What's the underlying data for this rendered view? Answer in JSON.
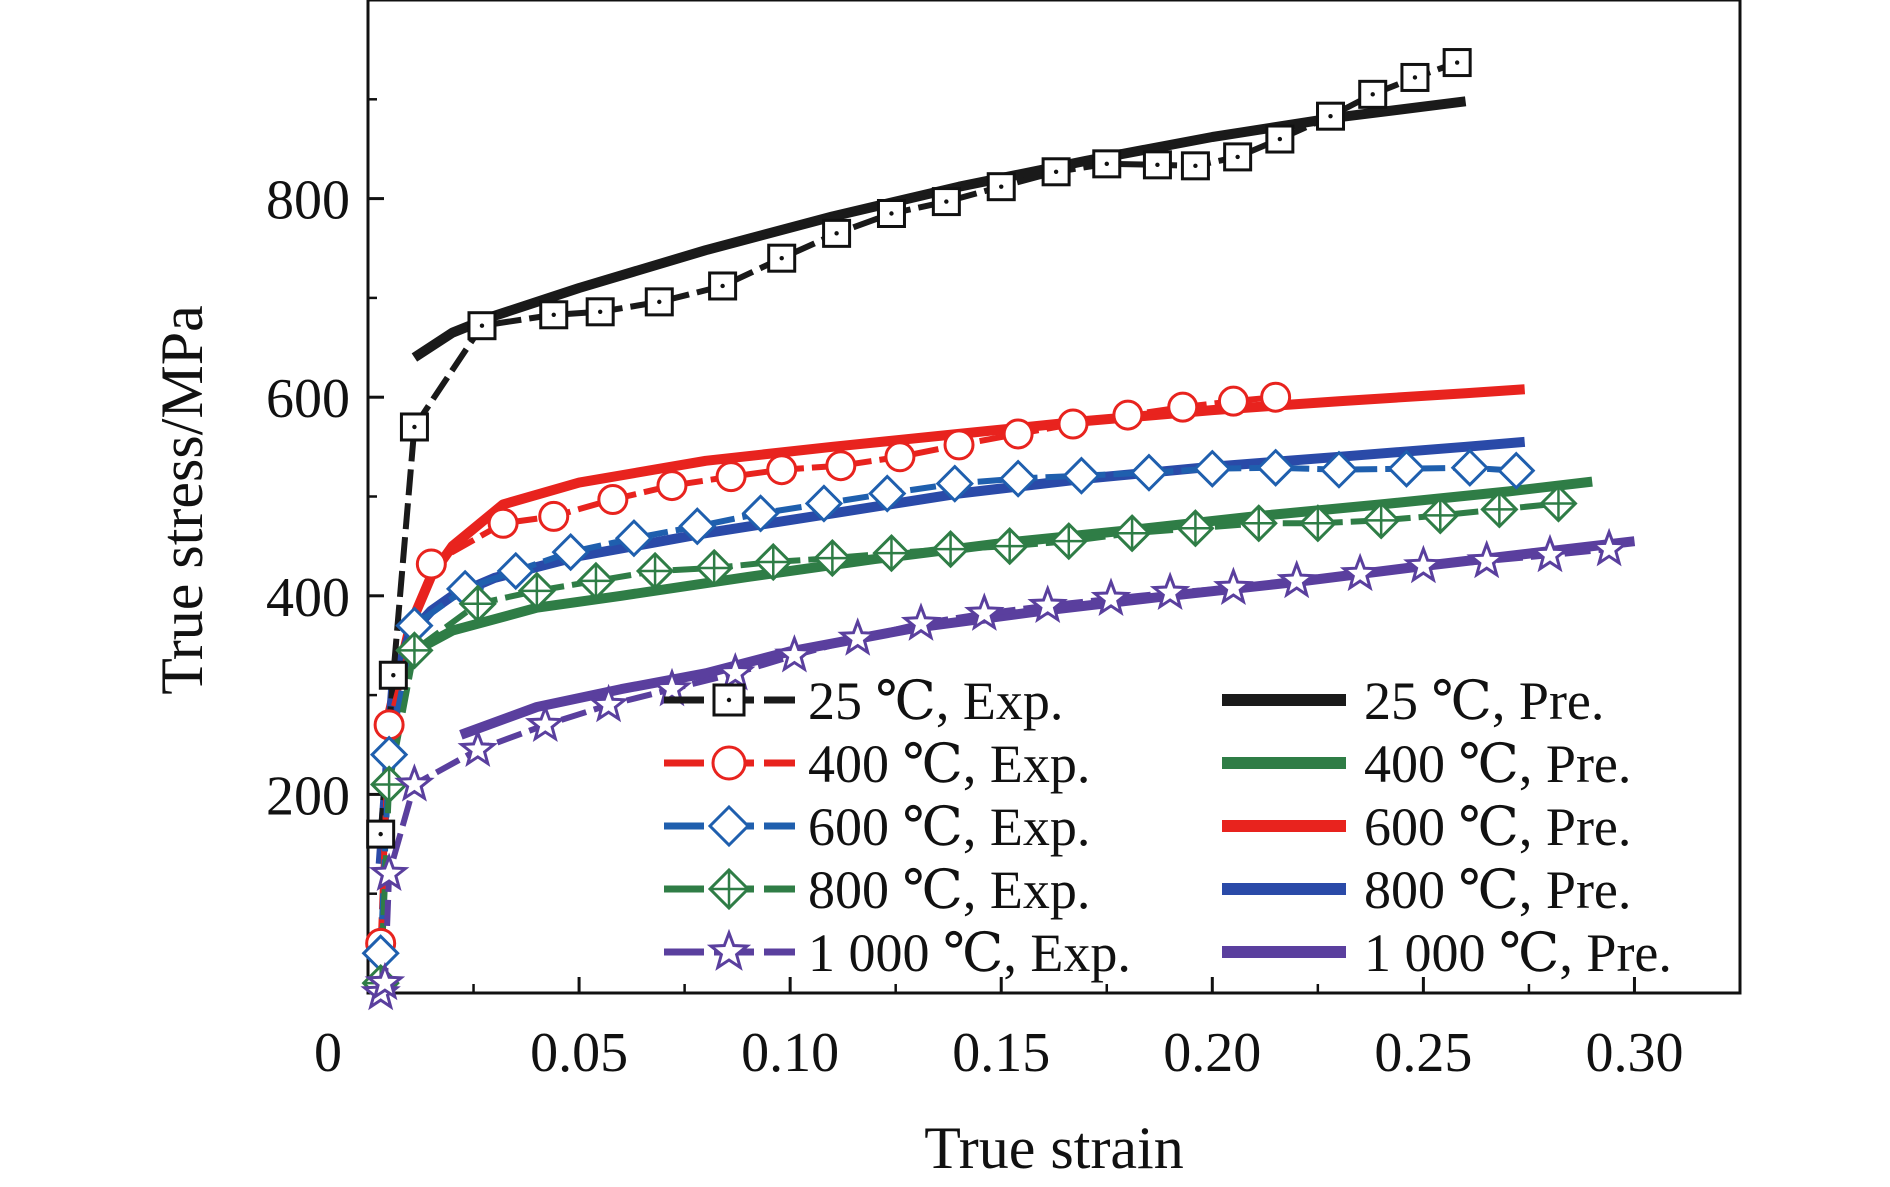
{
  "chart_data": {
    "type": "line",
    "title": "",
    "xlabel": "True strain",
    "ylabel": "True stress/MPa",
    "xlim": [
      0,
      0.325
    ],
    "ylim": [
      0,
      1000
    ],
    "x_ticks": [
      0.05,
      0.1,
      0.15,
      0.2,
      0.25,
      0.3
    ],
    "x_tick_labels": [
      "0.05",
      "0.10",
      "0.15",
      "0.20",
      "0.25",
      "0.30"
    ],
    "x_origin_label": "0",
    "y_ticks": [
      200,
      400,
      600,
      800
    ],
    "y_tick_labels": [
      "200",
      "400",
      "600",
      "800"
    ],
    "grid": false,
    "legend_position": "lower-right",
    "series": [
      {
        "name": "25 ℃, Exp.",
        "kind": "exp",
        "marker": "square",
        "color": "#1a1a1a",
        "x": [
          0.003,
          0.006,
          0.011,
          0.027,
          0.044,
          0.055,
          0.069,
          0.084,
          0.098,
          0.111,
          0.124,
          0.137,
          0.15,
          0.163,
          0.175,
          0.187,
          0.196,
          0.206,
          0.216,
          0.228,
          0.238,
          0.248,
          0.258
        ],
        "y": [
          160,
          320,
          570,
          672,
          683,
          686,
          696,
          712,
          740,
          765,
          785,
          797,
          812,
          827,
          835,
          834,
          833,
          842,
          860,
          883,
          905,
          922,
          937
        ]
      },
      {
        "name": "25 ℃, Pre.",
        "kind": "pre",
        "color": "#1a1a1a",
        "x": [
          0.011,
          0.02,
          0.03,
          0.05,
          0.08,
          0.11,
          0.14,
          0.17,
          0.2,
          0.23,
          0.26
        ],
        "y": [
          640,
          665,
          682,
          710,
          748,
          782,
          812,
          838,
          862,
          882,
          898
        ]
      },
      {
        "name": "400 ℃, Exp.",
        "kind": "exp",
        "marker": "circle",
        "color": "#e8231e",
        "x": [
          0.003,
          0.005,
          0.015,
          0.032,
          0.044,
          0.058,
          0.072,
          0.086,
          0.098,
          0.112,
          0.126,
          0.14,
          0.154,
          0.167,
          0.18,
          0.193,
          0.205,
          0.215
        ],
        "y": [
          50,
          270,
          432,
          473,
          480,
          497,
          511,
          520,
          527,
          531,
          540,
          552,
          563,
          573,
          582,
          590,
          596,
          600
        ]
      },
      {
        "name": "400 ℃, Pre.",
        "kind": "pre",
        "color": "#2f7d46",
        "x": [
          0.01,
          0.02,
          0.04,
          0.06,
          0.09,
          0.12,
          0.15,
          0.18,
          0.21,
          0.24,
          0.27,
          0.29
        ],
        "y": [
          342,
          365,
          388,
          400,
          419,
          437,
          453,
          466,
          480,
          492,
          505,
          515
        ]
      },
      {
        "name": "600 ℃, Exp.",
        "kind": "exp",
        "marker": "diamond",
        "color": "#1f5fae",
        "x": [
          0.003,
          0.005,
          0.011,
          0.023,
          0.035,
          0.048,
          0.063,
          0.078,
          0.093,
          0.108,
          0.123,
          0.139,
          0.154,
          0.169,
          0.185,
          0.2,
          0.215,
          0.23,
          0.246,
          0.261,
          0.272
        ],
        "y": [
          40,
          240,
          370,
          407,
          425,
          444,
          458,
          470,
          483,
          493,
          503,
          513,
          518,
          521,
          524,
          528,
          529,
          527,
          528,
          529,
          526
        ]
      },
      {
        "name": "600 ℃, Pre.",
        "kind": "pre",
        "color": "#e8231e",
        "x": [
          0.005,
          0.01,
          0.015,
          0.02,
          0.032,
          0.05,
          0.08,
          0.11,
          0.14,
          0.17,
          0.2,
          0.23,
          0.26,
          0.274
        ],
        "y": [
          280,
          370,
          420,
          450,
          492,
          514,
          536,
          550,
          563,
          576,
          587,
          596,
          604,
          608
        ]
      },
      {
        "name": "800 ℃, Exp.",
        "kind": "exp",
        "marker": "crossed-diamond",
        "color": "#2f7d46",
        "x": [
          0.003,
          0.005,
          0.011,
          0.026,
          0.04,
          0.054,
          0.068,
          0.082,
          0.096,
          0.11,
          0.124,
          0.138,
          0.152,
          0.166,
          0.181,
          0.196,
          0.211,
          0.225,
          0.24,
          0.254,
          0.268,
          0.282
        ],
        "y": [
          10,
          210,
          345,
          392,
          405,
          415,
          425,
          428,
          434,
          438,
          443,
          447,
          450,
          455,
          463,
          468,
          473,
          473,
          476,
          481,
          487,
          493
        ]
      },
      {
        "name": "800 ℃, Pre.",
        "kind": "pre",
        "color": "#2a4aa8",
        "x": [
          0.003,
          0.006,
          0.01,
          0.015,
          0.02,
          0.03,
          0.05,
          0.08,
          0.11,
          0.14,
          0.17,
          0.2,
          0.23,
          0.26,
          0.274
        ],
        "y": [
          130,
          310,
          362,
          385,
          400,
          418,
          440,
          463,
          483,
          503,
          518,
          530,
          540,
          550,
          555
        ]
      },
      {
        "name": "1 000 ℃, Exp.",
        "kind": "exp",
        "marker": "star",
        "color": "#5a3f9e",
        "x": [
          0.003,
          0.004,
          0.005,
          0.011,
          0.026,
          0.042,
          0.057,
          0.072,
          0.087,
          0.101,
          0.116,
          0.131,
          0.146,
          0.161,
          0.176,
          0.19,
          0.205,
          0.22,
          0.235,
          0.25,
          0.265,
          0.28,
          0.294
        ],
        "y": [
          0,
          10,
          120,
          210,
          245,
          270,
          290,
          306,
          322,
          340,
          357,
          372,
          382,
          390,
          397,
          403,
          408,
          415,
          422,
          430,
          435,
          441,
          447
        ]
      },
      {
        "name": "1 000 ℃, Pre.",
        "kind": "pre",
        "color": "#5a3f9e",
        "x": [
          0.022,
          0.04,
          0.06,
          0.08,
          0.1,
          0.13,
          0.16,
          0.19,
          0.22,
          0.25,
          0.28,
          0.3
        ],
        "y": [
          260,
          288,
          306,
          322,
          344,
          368,
          385,
          400,
          414,
          430,
          445,
          455
        ]
      }
    ]
  }
}
